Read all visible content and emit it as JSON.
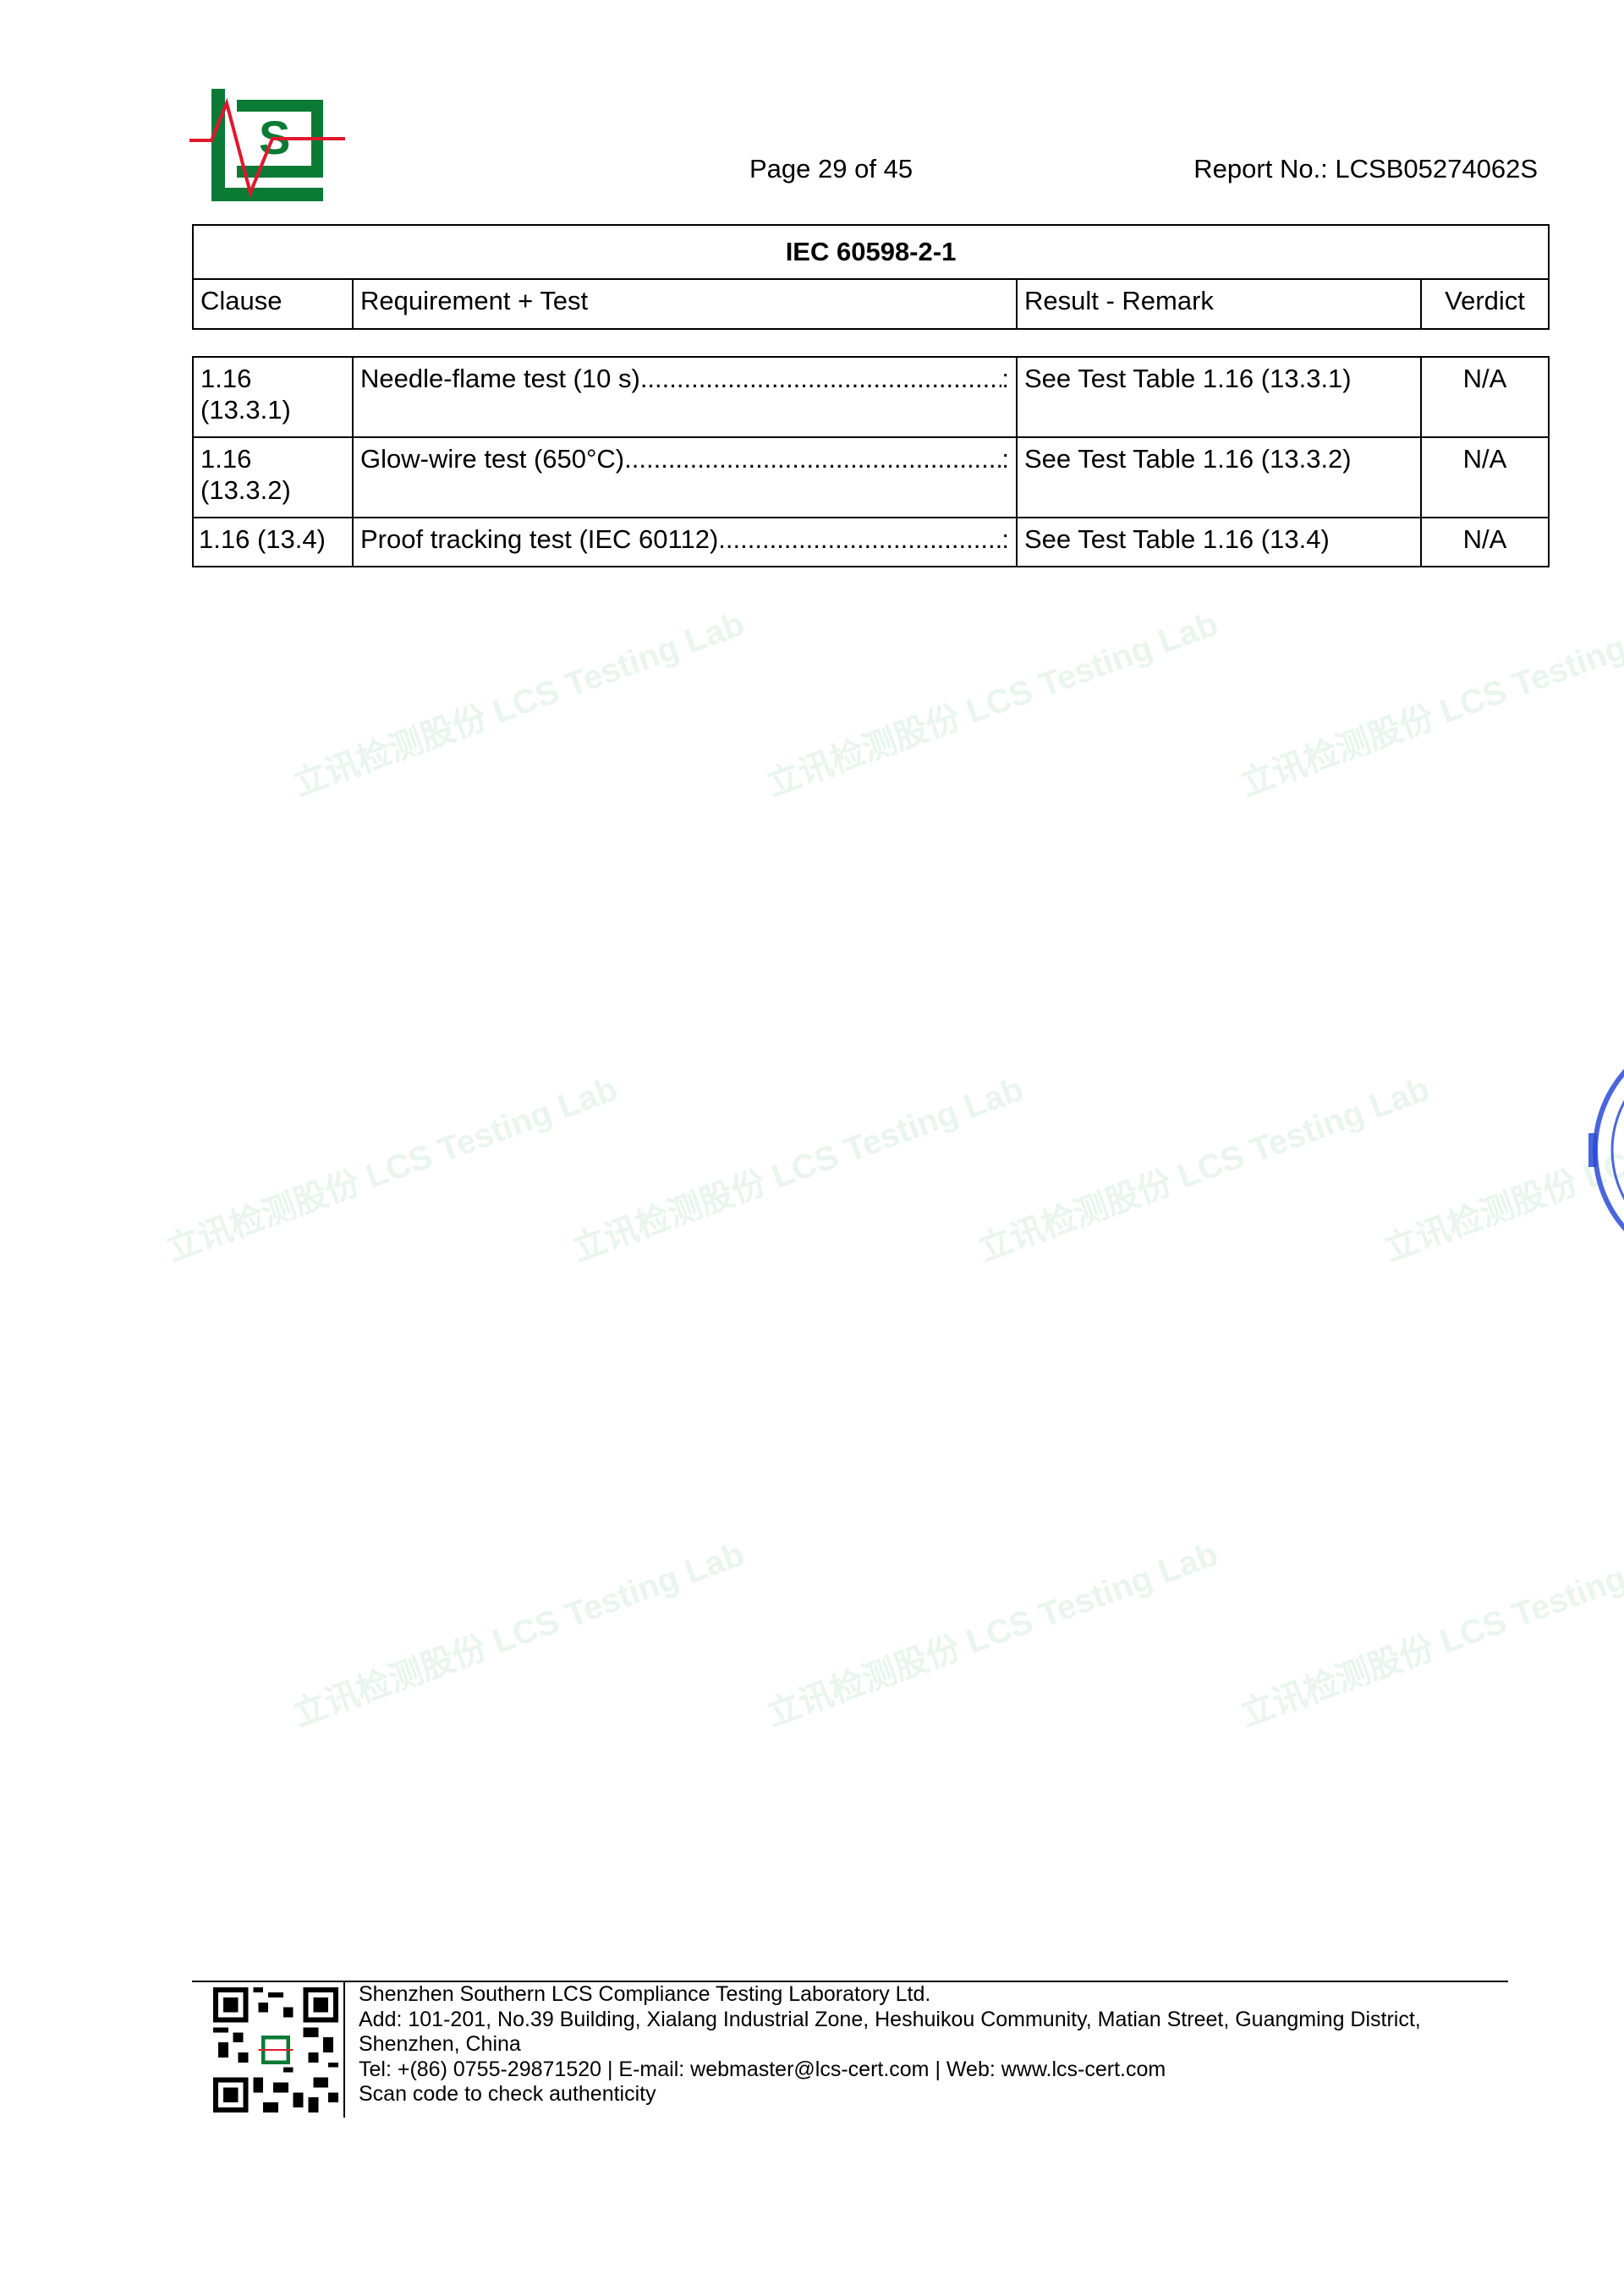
{
  "header": {
    "logo_text": "LCS",
    "page_label": "Page 29 of 45",
    "report_no": "Report No.: LCSB05274062S"
  },
  "table": {
    "title": "IEC 60598-2-1",
    "columns": [
      "Clause",
      "Requirement + Test",
      "Result - Remark",
      "Verdict"
    ],
    "rows": [
      {
        "clause": "1.16 (13.3.1)",
        "requirement": "Needle-flame test (10 s)",
        "result": "See Test Table 1.16 (13.3.1)",
        "verdict": "N/A"
      },
      {
        "clause": "1.16 (13.3.2)",
        "requirement": "Glow-wire test (650°C)",
        "result": "See Test Table 1.16 (13.3.2)",
        "verdict": "N/A"
      },
      {
        "clause": "1.16 (13.4)",
        "requirement": "Proof tracking test (IEC 60112)",
        "result": "See Test Table 1.16 (13.4)",
        "verdict": "N/A"
      }
    ]
  },
  "watermark": "立讯检测股份 LCS Testing Lab",
  "footer": {
    "company": "Shenzhen Southern LCS Compliance Testing Laboratory Ltd.",
    "address_line1": "Add: 101-201, No.39 Building, Xialang Industrial Zone, Heshuikou Community, Matian Street, Guangming District,",
    "address_line2": "Shenzhen, China",
    "contact": "Tel: +(86) 0755-29871520 | E-mail: webmaster@lcs-cert.com | Web: www.lcs-cert.com",
    "scan_note": "Scan code to check authenticity"
  },
  "colors": {
    "logo_green": "#0a7a35",
    "logo_red": "#e0182d",
    "stamp_blue": "#2a4bd8"
  }
}
